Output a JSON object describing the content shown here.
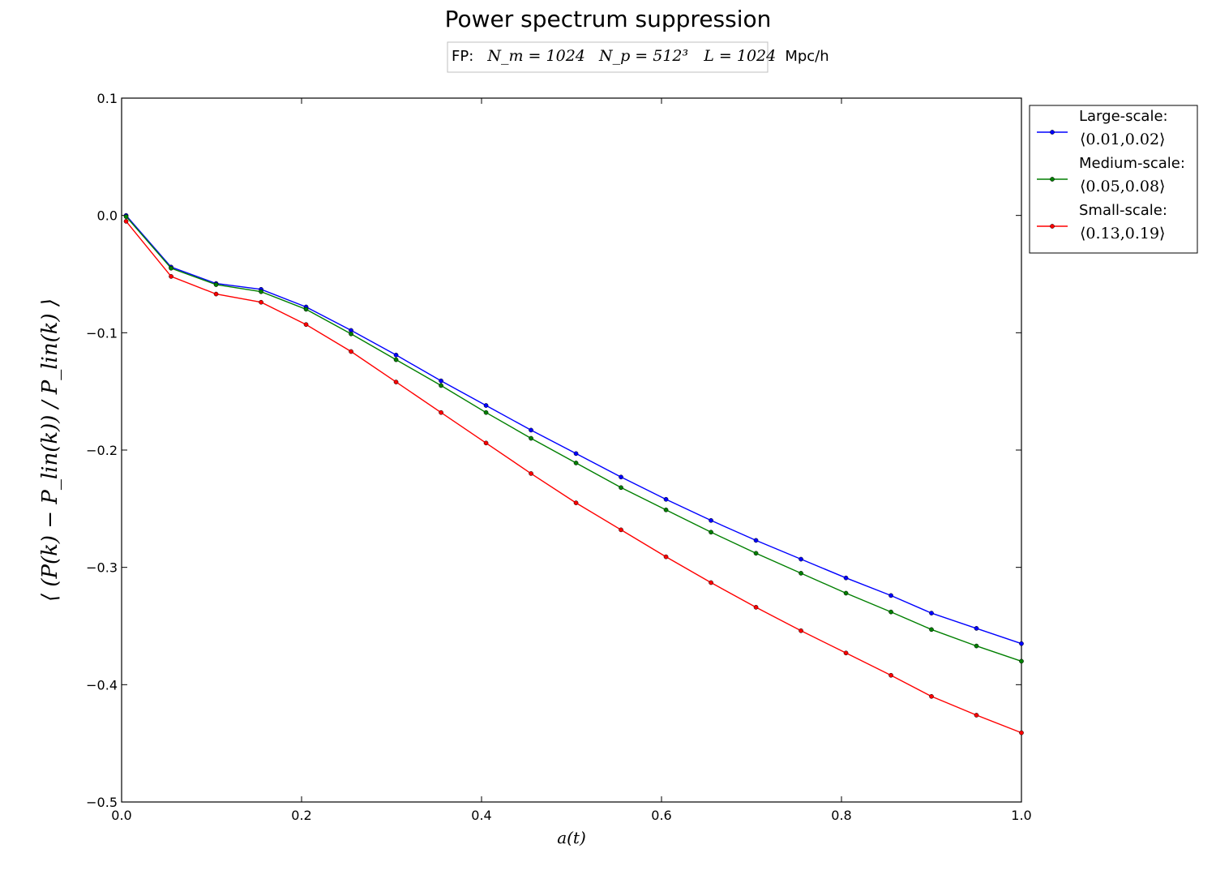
{
  "chart_data": {
    "type": "line",
    "title": "Power spectrum suppression",
    "subtitle": {
      "prefix": "FP:",
      "nm": "N_m = 1024",
      "np": "N_p = 512³",
      "box": "L = 1024",
      "unit": "Mpc/h"
    },
    "xlabel": "a(t)",
    "ylabel": "⟨ (P(k) − P_lin(k)) / P_lin(k) ⟩",
    "xlim": [
      0.0,
      1.0
    ],
    "ylim": [
      -0.5,
      0.1
    ],
    "xticks": [
      "0.0",
      "0.2",
      "0.4",
      "0.6",
      "0.8",
      "1.0"
    ],
    "yticks": [
      "0.1",
      "0.0",
      "−0.1",
      "−0.2",
      "−0.3",
      "−0.4",
      "−0.5"
    ],
    "grid": false,
    "legend_position": "outside-top-right",
    "x": [
      0.005,
      0.055,
      0.105,
      0.155,
      0.205,
      0.255,
      0.305,
      0.355,
      0.405,
      0.455,
      0.505,
      0.555,
      0.605,
      0.655,
      0.705,
      0.755,
      0.805,
      0.855,
      0.9,
      0.95,
      1.0
    ],
    "series": [
      {
        "name": "Large-scale:",
        "range": "⟨0.01,0.02⟩",
        "color": "#0000ff",
        "values": [
          0.0,
          -0.044,
          -0.058,
          -0.063,
          -0.078,
          -0.098,
          -0.119,
          -0.141,
          -0.162,
          -0.183,
          -0.203,
          -0.223,
          -0.242,
          -0.26,
          -0.277,
          -0.293,
          -0.309,
          -0.324,
          -0.339,
          -0.352,
          -0.365
        ]
      },
      {
        "name": "Medium-scale:",
        "range": "⟨0.05,0.08⟩",
        "color": "#007f00",
        "values": [
          -0.001,
          -0.045,
          -0.059,
          -0.065,
          -0.08,
          -0.101,
          -0.123,
          -0.145,
          -0.168,
          -0.19,
          -0.211,
          -0.232,
          -0.251,
          -0.27,
          -0.288,
          -0.305,
          -0.322,
          -0.338,
          -0.353,
          -0.367,
          -0.38
        ]
      },
      {
        "name": "Small-scale:",
        "range": "⟨0.13,0.19⟩",
        "color": "#ff0000",
        "values": [
          -0.005,
          -0.052,
          -0.067,
          -0.074,
          -0.093,
          -0.116,
          -0.142,
          -0.168,
          -0.194,
          -0.22,
          -0.245,
          -0.268,
          -0.291,
          -0.313,
          -0.334,
          -0.354,
          -0.373,
          -0.392,
          -0.41,
          -0.426,
          -0.441
        ]
      }
    ]
  }
}
